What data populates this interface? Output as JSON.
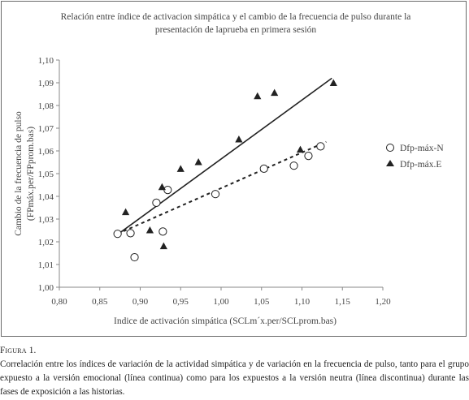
{
  "chart_data": {
    "type": "scatter",
    "title_lines": [
      "Relación entre índice de activacion simpática y el cambio de la frecuencia de pulso durante la",
      "presentación de laprueba en primera sesión"
    ],
    "xlabel": "Indice de activación simpática (SCLm´x.per/SCLprom.bas)",
    "ylabel_lines": [
      "Cambio de la frecuencia de pulso",
      "(FPmáx.per/FPprom.bas)"
    ],
    "xlim": [
      0.8,
      1.2
    ],
    "ylim": [
      1.0,
      1.1
    ],
    "x_ticks": [
      "0,80",
      "0,85",
      "0,90",
      "0,95",
      "1,00",
      "1,05",
      "1,10",
      "1,15",
      "1,20"
    ],
    "y_ticks": [
      "1,00",
      "1,01",
      "1,02",
      "1,03",
      "1,04",
      "1,05",
      "1,06",
      "1,07",
      "1,08",
      "1,09",
      "1,10"
    ],
    "grid": false,
    "legend_position": "right",
    "series": [
      {
        "name": "Dfp-máx-N",
        "marker": "open-circle",
        "line": "dashed",
        "points": [
          [
            0.872,
            1.0235
          ],
          [
            0.888,
            1.0238
          ],
          [
            0.893,
            1.0132
          ],
          [
            0.92,
            1.0372
          ],
          [
            0.928,
            1.0245
          ],
          [
            0.934,
            1.0428
          ],
          [
            0.993,
            1.041
          ],
          [
            1.053,
            1.0522
          ],
          [
            1.09,
            1.0535
          ],
          [
            1.108,
            1.0578
          ],
          [
            1.123,
            1.062
          ]
        ],
        "trendline": [
          [
            0.872,
            1.0235
          ],
          [
            1.13,
            1.064
          ]
        ]
      },
      {
        "name": "Dfp-máx.E",
        "marker": "filled-triangle",
        "line": "solid",
        "points": [
          [
            0.882,
            1.033
          ],
          [
            0.912,
            1.025
          ],
          [
            0.927,
            1.044
          ],
          [
            0.929,
            1.018
          ],
          [
            0.95,
            1.052
          ],
          [
            0.972,
            1.055
          ],
          [
            1.022,
            1.065
          ],
          [
            1.045,
            1.084
          ],
          [
            1.066,
            1.0855
          ],
          [
            1.098,
            1.0605
          ],
          [
            1.139,
            1.0898
          ]
        ],
        "trendline": [
          [
            0.875,
            1.024
          ],
          [
            1.137,
            1.092
          ]
        ]
      }
    ]
  },
  "caption": {
    "label": "Figura 1.",
    "text": "Correlación entre los índices de variación de la actividad simpática y de variación en la frecuencia de pulso, tanto para el grupo expuesto a la versión emocional (línea continua) como para los expuestos a la versión neutra (línea discontinua) durante las fases de exposición a las historias."
  }
}
